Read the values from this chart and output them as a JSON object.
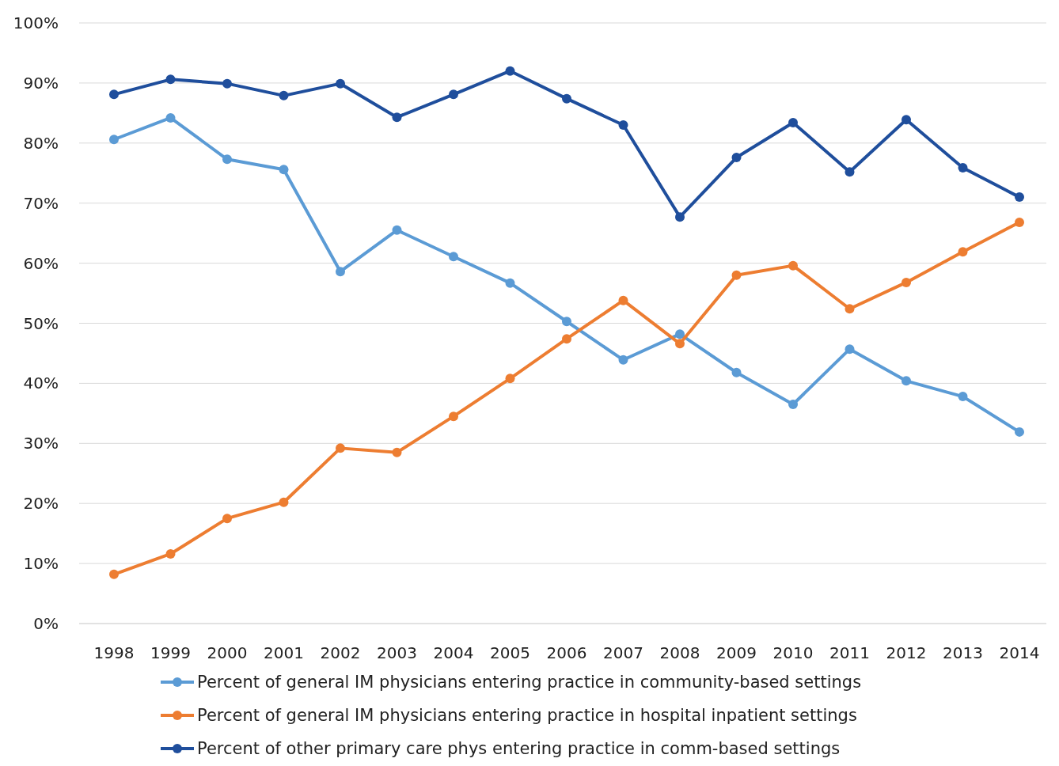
{
  "chart_data": {
    "type": "line",
    "categories": [
      "1998",
      "1999",
      "2000",
      "2001",
      "2002",
      "2003",
      "2004",
      "2005",
      "2006",
      "2007",
      "2008",
      "2009",
      "2010",
      "2011",
      "2012",
      "2013",
      "2014"
    ],
    "series": [
      {
        "name": "Percent of general IM physicians entering practice in community-based settings",
        "color": "#5b9bd5",
        "values": [
          80.6,
          84.2,
          77.3,
          75.6,
          58.6,
          65.5,
          61.1,
          56.7,
          50.3,
          43.9,
          48.2,
          41.8,
          36.5,
          45.7,
          40.4,
          37.8,
          31.9
        ]
      },
      {
        "name": "Percent of general IM physicians entering practice in hospital inpatient  settings",
        "color": "#ed7d31",
        "values": [
          8.2,
          11.6,
          17.5,
          20.2,
          29.2,
          28.5,
          34.5,
          40.8,
          47.4,
          53.8,
          46.6,
          58.0,
          59.6,
          52.4,
          56.8,
          61.9,
          66.8
        ]
      },
      {
        "name": "Percent of other primary care phys entering practice in comm-based settings",
        "color": "#1f4e9c",
        "values": [
          88.1,
          90.6,
          89.9,
          87.9,
          89.9,
          84.3,
          88.1,
          92.0,
          87.4,
          83.0,
          67.7,
          77.6,
          83.4,
          75.2,
          83.9,
          75.9,
          71.0
        ]
      }
    ],
    "ylim": [
      0,
      100
    ],
    "yticks": [
      {
        "value": 0,
        "label": "0%"
      },
      {
        "value": 10,
        "label": "10%"
      },
      {
        "value": 20,
        "label": "20%"
      },
      {
        "value": 30,
        "label": "30%"
      },
      {
        "value": 40,
        "label": "40%"
      },
      {
        "value": 50,
        "label": "50%"
      },
      {
        "value": 60,
        "label": "60%"
      },
      {
        "value": 70,
        "label": "70%"
      },
      {
        "value": 80,
        "label": "80%"
      },
      {
        "value": 90,
        "label": "90%"
      },
      {
        "value": 100,
        "label": "100%"
      }
    ],
    "grid": "y",
    "legend": "bottom",
    "marker": "circle",
    "line_style": "solid"
  }
}
